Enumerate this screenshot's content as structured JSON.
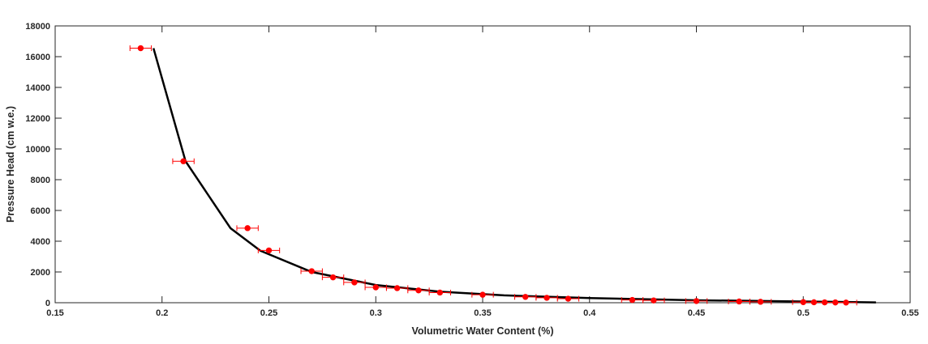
{
  "chart_data": {
    "type": "scatter",
    "title": "",
    "xlabel": "Volumetric Water Content (%)",
    "ylabel": "Pressure Head (cm w.e.)",
    "xlim": [
      0.15,
      0.55
    ],
    "ylim": [
      0,
      18000
    ],
    "x_ticks": [
      "0.15",
      "0.2",
      "0.25",
      "0.3",
      "0.35",
      "0.4",
      "0.45",
      "0.5",
      "0.55"
    ],
    "y_ticks": [
      "0",
      "2000",
      "4000",
      "6000",
      "8000",
      "10000",
      "12000",
      "14000",
      "16000",
      "18000"
    ],
    "grid": false,
    "legend": "none",
    "colors": {
      "points": "#ff0000",
      "curve": "#000000",
      "axes": "#262626"
    },
    "series": [
      {
        "kind": "points_with_x_error",
        "x_error": 0.005,
        "points": [
          {
            "x": 0.19,
            "y": 16550
          },
          {
            "x": 0.21,
            "y": 9200
          },
          {
            "x": 0.24,
            "y": 4850
          },
          {
            "x": 0.25,
            "y": 3400
          },
          {
            "x": 0.27,
            "y": 2050
          },
          {
            "x": 0.28,
            "y": 1650
          },
          {
            "x": 0.29,
            "y": 1320
          },
          {
            "x": 0.3,
            "y": 1000
          },
          {
            "x": 0.31,
            "y": 950
          },
          {
            "x": 0.32,
            "y": 800
          },
          {
            "x": 0.33,
            "y": 660
          },
          {
            "x": 0.35,
            "y": 520
          },
          {
            "x": 0.37,
            "y": 380
          },
          {
            "x": 0.38,
            "y": 320
          },
          {
            "x": 0.39,
            "y": 260
          },
          {
            "x": 0.42,
            "y": 180
          },
          {
            "x": 0.43,
            "y": 150
          },
          {
            "x": 0.45,
            "y": 110
          },
          {
            "x": 0.47,
            "y": 80
          },
          {
            "x": 0.48,
            "y": 60
          },
          {
            "x": 0.5,
            "y": 40
          },
          {
            "x": 0.505,
            "y": 30
          },
          {
            "x": 0.51,
            "y": 25
          },
          {
            "x": 0.515,
            "y": 20
          },
          {
            "x": 0.52,
            "y": 10
          }
        ]
      },
      {
        "kind": "fitted_curve",
        "points": [
          {
            "x": 0.196,
            "y": 16550
          },
          {
            "x": 0.211,
            "y": 9200
          },
          {
            "x": 0.232,
            "y": 4850
          },
          {
            "x": 0.246,
            "y": 3380
          },
          {
            "x": 0.27,
            "y": 2000
          },
          {
            "x": 0.3,
            "y": 1150
          },
          {
            "x": 0.33,
            "y": 720
          },
          {
            "x": 0.36,
            "y": 480
          },
          {
            "x": 0.4,
            "y": 300
          },
          {
            "x": 0.45,
            "y": 160
          },
          {
            "x": 0.5,
            "y": 80
          },
          {
            "x": 0.534,
            "y": 20
          }
        ]
      }
    ]
  }
}
